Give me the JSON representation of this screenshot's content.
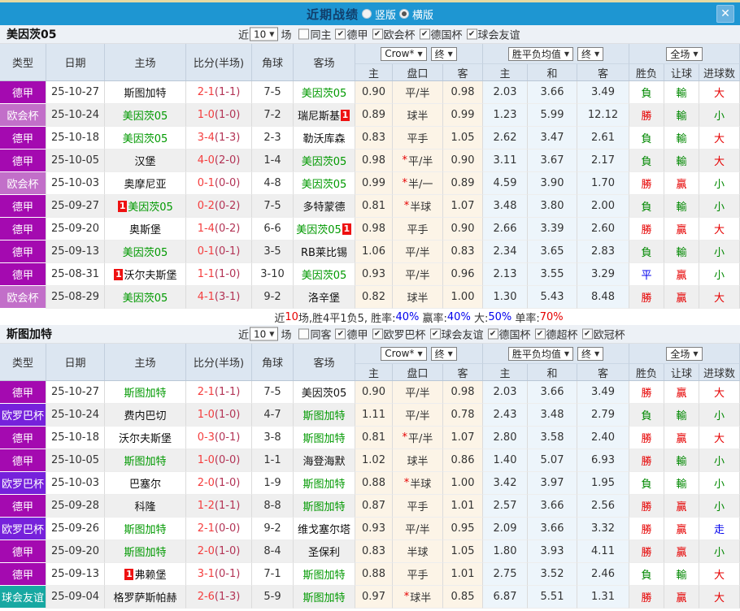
{
  "titlebar": {
    "title": "近期战绩",
    "vertical": "竖版",
    "horizontal": "横版",
    "selected_layout": "横版",
    "close": "✕"
  },
  "colors": {
    "topbar": "#1E96D2",
    "top_strip": "#E6D9A2",
    "header_bg": "#DCE6F1",
    "crow_col_bg": "#FCF4E7",
    "avg_col_bg": "#EDF5FB",
    "team_green": "#009900",
    "win_red": "#E60000",
    "lose_green": "#008800",
    "draw_blue": "#0000EE",
    "score_red": "#F53D3D",
    "half_dark": "#B23355"
  },
  "league_colors": {
    "德甲": "#A40AB0",
    "欧会杯": "#C26FC9",
    "欧罗巴杯": "#7621DB",
    "球会友谊": "#17A8A2"
  },
  "badges": {
    "red_card": "1"
  },
  "table_header": {
    "cols": [
      "类型",
      "日期",
      "主场",
      "比分(半场)",
      "角球",
      "客场"
    ],
    "sub": [
      "主",
      "盘口",
      "客",
      "主",
      "和",
      "客",
      "胜负",
      "让球",
      "进球数"
    ],
    "selects": {
      "bookmaker": "Crow*",
      "final1": "终",
      "avg": "胜平负均值",
      "final2": "终",
      "scope": "全场"
    }
  },
  "sections": [
    {
      "team": "美因茨05",
      "filters": {
        "near_label": "近",
        "count": "10",
        "games_label": "场",
        "same_label": "同主",
        "same_checked": false,
        "leagues": [
          "德甲",
          "欧会杯",
          "德国杯",
          "球会友谊"
        ]
      },
      "rows": [
        {
          "type": "德甲",
          "date": "25-10-27",
          "home": "斯图加特",
          "homeGreen": false,
          "homeCard": "",
          "score": "2-1",
          "half": "(1-1)",
          "corners": "7-5",
          "away": "美因茨05",
          "awayGreen": true,
          "awayCard": "",
          "oddsHome": "0.90",
          "handicap": "平/半",
          "star": false,
          "oddsAway": "0.98",
          "avgHome": "2.03",
          "avgDraw": "3.66",
          "avgAway": "3.49",
          "result": "負",
          "letResult": "輸",
          "goalResult": "大"
        },
        {
          "type": "欧会杯",
          "date": "25-10-24",
          "home": "美因茨05",
          "homeGreen": true,
          "homeCard": "",
          "score": "1-0",
          "half": "(1-0)",
          "corners": "7-2",
          "away": "瑞尼斯基",
          "awayGreen": false,
          "awayCard": "post",
          "oddsHome": "0.89",
          "handicap": "球半",
          "star": false,
          "oddsAway": "0.99",
          "avgHome": "1.23",
          "avgDraw": "5.99",
          "avgAway": "12.12",
          "result": "勝",
          "letResult": "輸",
          "goalResult": "小"
        },
        {
          "type": "德甲",
          "date": "25-10-18",
          "home": "美因茨05",
          "homeGreen": true,
          "homeCard": "",
          "score": "3-4",
          "half": "(1-3)",
          "corners": "2-3",
          "away": "勒沃库森",
          "awayGreen": false,
          "awayCard": "",
          "oddsHome": "0.83",
          "handicap": "平手",
          "star": false,
          "oddsAway": "1.05",
          "avgHome": "2.62",
          "avgDraw": "3.47",
          "avgAway": "2.61",
          "result": "負",
          "letResult": "輸",
          "goalResult": "大"
        },
        {
          "type": "德甲",
          "date": "25-10-05",
          "home": "汉堡",
          "homeGreen": false,
          "homeCard": "",
          "score": "4-0",
          "half": "(2-0)",
          "corners": "1-4",
          "away": "美因茨05",
          "awayGreen": true,
          "awayCard": "",
          "oddsHome": "0.98",
          "handicap": "平/半",
          "star": true,
          "oddsAway": "0.90",
          "avgHome": "3.11",
          "avgDraw": "3.67",
          "avgAway": "2.17",
          "result": "負",
          "letResult": "輸",
          "goalResult": "大"
        },
        {
          "type": "欧会杯",
          "date": "25-10-03",
          "home": "奥摩尼亚",
          "homeGreen": false,
          "homeCard": "",
          "score": "0-1",
          "half": "(0-0)",
          "corners": "4-8",
          "away": "美因茨05",
          "awayGreen": true,
          "awayCard": "",
          "oddsHome": "0.99",
          "handicap": "半/一",
          "star": true,
          "oddsAway": "0.89",
          "avgHome": "4.59",
          "avgDraw": "3.90",
          "avgAway": "1.70",
          "result": "勝",
          "letResult": "贏",
          "goalResult": "小"
        },
        {
          "type": "德甲",
          "date": "25-09-27",
          "home": "美因茨05",
          "homeGreen": true,
          "homeCard": "pre",
          "score": "0-2",
          "half": "(0-2)",
          "corners": "7-5",
          "away": "多特蒙德",
          "awayGreen": false,
          "awayCard": "",
          "oddsHome": "0.81",
          "handicap": "半球",
          "star": true,
          "oddsAway": "1.07",
          "avgHome": "3.48",
          "avgDraw": "3.80",
          "avgAway": "2.00",
          "result": "負",
          "letResult": "輸",
          "goalResult": "小"
        },
        {
          "type": "德甲",
          "date": "25-09-20",
          "home": "奥斯堡",
          "homeGreen": false,
          "homeCard": "",
          "score": "1-4",
          "half": "(0-2)",
          "corners": "6-6",
          "away": "美因茨05",
          "awayGreen": true,
          "awayCard": "post",
          "oddsHome": "0.98",
          "handicap": "平手",
          "star": false,
          "oddsAway": "0.90",
          "avgHome": "2.66",
          "avgDraw": "3.39",
          "avgAway": "2.60",
          "result": "勝",
          "letResult": "贏",
          "goalResult": "大"
        },
        {
          "type": "德甲",
          "date": "25-09-13",
          "home": "美因茨05",
          "homeGreen": true,
          "homeCard": "",
          "score": "0-1",
          "half": "(0-1)",
          "corners": "3-5",
          "away": "RB莱比锡",
          "awayGreen": false,
          "awayCard": "",
          "oddsHome": "1.06",
          "handicap": "平/半",
          "star": false,
          "oddsAway": "0.83",
          "avgHome": "2.34",
          "avgDraw": "3.65",
          "avgAway": "2.83",
          "result": "負",
          "letResult": "輸",
          "goalResult": "小"
        },
        {
          "type": "德甲",
          "date": "25-08-31",
          "home": "沃尔夫斯堡",
          "homeGreen": false,
          "homeCard": "pre",
          "score": "1-1",
          "half": "(1-0)",
          "corners": "3-10",
          "away": "美因茨05",
          "awayGreen": true,
          "awayCard": "",
          "oddsHome": "0.93",
          "handicap": "平/半",
          "star": false,
          "oddsAway": "0.96",
          "avgHome": "2.13",
          "avgDraw": "3.55",
          "avgAway": "3.29",
          "result": "平",
          "letResult": "贏",
          "goalResult": "小"
        },
        {
          "type": "欧会杯",
          "date": "25-08-29",
          "home": "美因茨05",
          "homeGreen": true,
          "homeCard": "",
          "score": "4-1",
          "half": "(3-1)",
          "corners": "9-2",
          "away": "洛辛堡",
          "awayGreen": false,
          "awayCard": "",
          "oddsHome": "0.82",
          "handicap": "球半",
          "star": false,
          "oddsAway": "1.00",
          "avgHome": "1.30",
          "avgDraw": "5.43",
          "avgAway": "8.48",
          "result": "勝",
          "letResult": "贏",
          "goalResult": "大"
        }
      ],
      "summary": [
        {
          "text": "近",
          "color": "#333333"
        },
        {
          "text": "10",
          "color": "#E60000"
        },
        {
          "text": "场,胜4平1负5, 胜率:",
          "color": "#333333"
        },
        {
          "text": "40%",
          "color": "#0000EE"
        },
        {
          "text": " 赢率:",
          "color": "#333333"
        },
        {
          "text": "40%",
          "color": "#0000EE"
        },
        {
          "text": " 大:",
          "color": "#333333"
        },
        {
          "text": "50%",
          "color": "#0000EE"
        },
        {
          "text": " 单率:",
          "color": "#333333"
        },
        {
          "text": "70%",
          "color": "#E60000"
        }
      ]
    },
    {
      "team": "斯图加特",
      "filters": {
        "near_label": "近",
        "count": "10",
        "games_label": "场",
        "same_label": "同客",
        "same_checked": false,
        "leagues": [
          "德甲",
          "欧罗巴杯",
          "球会友谊",
          "德国杯",
          "德超杯",
          "欧冠杯"
        ]
      },
      "rows": [
        {
          "type": "德甲",
          "date": "25-10-27",
          "home": "斯图加特",
          "homeGreen": true,
          "homeCard": "",
          "score": "2-1",
          "half": "(1-1)",
          "corners": "7-5",
          "away": "美因茨05",
          "awayGreen": false,
          "awayCard": "",
          "oddsHome": "0.90",
          "handicap": "平/半",
          "star": false,
          "oddsAway": "0.98",
          "avgHome": "2.03",
          "avgDraw": "3.66",
          "avgAway": "3.49",
          "result": "勝",
          "letResult": "贏",
          "goalResult": "大"
        },
        {
          "type": "欧罗巴杯",
          "date": "25-10-24",
          "home": "费内巴切",
          "homeGreen": false,
          "homeCard": "",
          "score": "1-0",
          "half": "(1-0)",
          "corners": "4-7",
          "away": "斯图加特",
          "awayGreen": true,
          "awayCard": "",
          "oddsHome": "1.11",
          "handicap": "平/半",
          "star": false,
          "oddsAway": "0.78",
          "avgHome": "2.43",
          "avgDraw": "3.48",
          "avgAway": "2.79",
          "result": "負",
          "letResult": "輸",
          "goalResult": "小"
        },
        {
          "type": "德甲",
          "date": "25-10-18",
          "home": "沃尔夫斯堡",
          "homeGreen": false,
          "homeCard": "",
          "score": "0-3",
          "half": "(0-1)",
          "corners": "3-8",
          "away": "斯图加特",
          "awayGreen": true,
          "awayCard": "",
          "oddsHome": "0.81",
          "handicap": "平/半",
          "star": true,
          "oddsAway": "1.07",
          "avgHome": "2.80",
          "avgDraw": "3.58",
          "avgAway": "2.40",
          "result": "勝",
          "letResult": "贏",
          "goalResult": "大"
        },
        {
          "type": "德甲",
          "date": "25-10-05",
          "home": "斯图加特",
          "homeGreen": true,
          "homeCard": "",
          "score": "1-0",
          "half": "(0-0)",
          "corners": "1-1",
          "away": "海登海默",
          "awayGreen": false,
          "awayCard": "",
          "oddsHome": "1.02",
          "handicap": "球半",
          "star": false,
          "oddsAway": "0.86",
          "avgHome": "1.40",
          "avgDraw": "5.07",
          "avgAway": "6.93",
          "result": "勝",
          "letResult": "輸",
          "goalResult": "小"
        },
        {
          "type": "欧罗巴杯",
          "date": "25-10-03",
          "home": "巴塞尔",
          "homeGreen": false,
          "homeCard": "",
          "score": "2-0",
          "half": "(1-0)",
          "corners": "1-9",
          "away": "斯图加特",
          "awayGreen": true,
          "awayCard": "",
          "oddsHome": "0.88",
          "handicap": "半球",
          "star": true,
          "oddsAway": "1.00",
          "avgHome": "3.42",
          "avgDraw": "3.97",
          "avgAway": "1.95",
          "result": "負",
          "letResult": "輸",
          "goalResult": "小"
        },
        {
          "type": "德甲",
          "date": "25-09-28",
          "home": "科隆",
          "homeGreen": false,
          "homeCard": "",
          "score": "1-2",
          "half": "(1-1)",
          "corners": "8-8",
          "away": "斯图加特",
          "awayGreen": true,
          "awayCard": "",
          "oddsHome": "0.87",
          "handicap": "平手",
          "star": false,
          "oddsAway": "1.01",
          "avgHome": "2.57",
          "avgDraw": "3.66",
          "avgAway": "2.56",
          "result": "勝",
          "letResult": "贏",
          "goalResult": "小"
        },
        {
          "type": "欧罗巴杯",
          "date": "25-09-26",
          "home": "斯图加特",
          "homeGreen": true,
          "homeCard": "",
          "score": "2-1",
          "half": "(0-0)",
          "corners": "9-2",
          "away": "维戈塞尔塔",
          "awayGreen": false,
          "awayCard": "",
          "oddsHome": "0.93",
          "handicap": "平/半",
          "star": false,
          "oddsAway": "0.95",
          "avgHome": "2.09",
          "avgDraw": "3.66",
          "avgAway": "3.32",
          "result": "勝",
          "letResult": "贏",
          "goalResult": "走"
        },
        {
          "type": "德甲",
          "date": "25-09-20",
          "home": "斯图加特",
          "homeGreen": true,
          "homeCard": "",
          "score": "2-0",
          "half": "(1-0)",
          "corners": "8-4",
          "away": "圣保利",
          "awayGreen": false,
          "awayCard": "",
          "oddsHome": "0.83",
          "handicap": "半球",
          "star": false,
          "oddsAway": "1.05",
          "avgHome": "1.80",
          "avgDraw": "3.93",
          "avgAway": "4.11",
          "result": "勝",
          "letResult": "贏",
          "goalResult": "小"
        },
        {
          "type": "德甲",
          "date": "25-09-13",
          "home": "弗赖堡",
          "homeGreen": false,
          "homeCard": "pre",
          "score": "3-1",
          "half": "(0-1)",
          "corners": "7-1",
          "away": "斯图加特",
          "awayGreen": true,
          "awayCard": "",
          "oddsHome": "0.88",
          "handicap": "平手",
          "star": false,
          "oddsAway": "1.01",
          "avgHome": "2.75",
          "avgDraw": "3.52",
          "avgAway": "2.46",
          "result": "負",
          "letResult": "輸",
          "goalResult": "大"
        },
        {
          "type": "球会友谊",
          "date": "25-09-04",
          "home": "格罗萨斯帕赫",
          "homeGreen": false,
          "homeCard": "",
          "score": "2-6",
          "half": "(1-3)",
          "corners": "5-9",
          "away": "斯图加特",
          "awayGreen": true,
          "awayCard": "",
          "oddsHome": "0.97",
          "handicap": "球半",
          "star": true,
          "oddsAway": "0.85",
          "avgHome": "6.87",
          "avgDraw": "5.51",
          "avgAway": "1.31",
          "result": "勝",
          "letResult": "贏",
          "goalResult": "大"
        }
      ],
      "summary": null
    }
  ]
}
